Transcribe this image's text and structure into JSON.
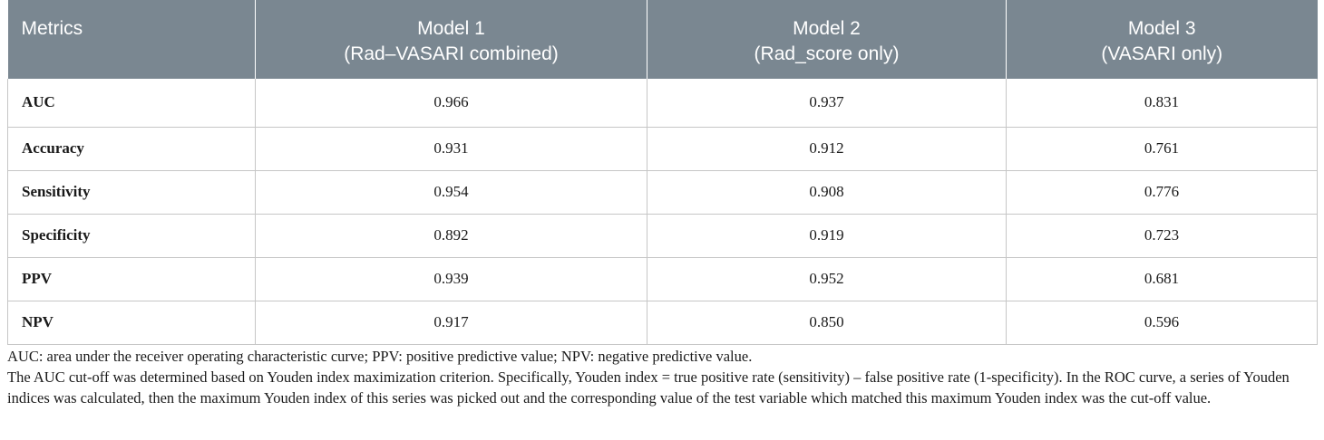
{
  "table": {
    "headers": [
      {
        "line1": "Metrics",
        "line2": ""
      },
      {
        "line1": "Model 1",
        "line2": "(Rad–VASARI combined)"
      },
      {
        "line1": "Model 2",
        "line2": "(Rad_score only)"
      },
      {
        "line1": "Model 3",
        "line2": "(VASARI only)"
      }
    ],
    "rows": [
      {
        "metric": "AUC",
        "m1": "0.966",
        "m2": "0.937",
        "m3": "0.831"
      },
      {
        "metric": "Accuracy",
        "m1": "0.931",
        "m2": "0.912",
        "m3": "0.761"
      },
      {
        "metric": "Sensitivity",
        "m1": "0.954",
        "m2": "0.908",
        "m3": "0.776"
      },
      {
        "metric": "Specificity",
        "m1": "0.892",
        "m2": "0.919",
        "m3": "0.723"
      },
      {
        "metric": "PPV",
        "m1": "0.939",
        "m2": "0.952",
        "m3": "0.681"
      },
      {
        "metric": "NPV",
        "m1": "0.917",
        "m2": "0.850",
        "m3": "0.596"
      }
    ]
  },
  "notes": {
    "abbreviations": "AUC: area under the receiver operating characteristic curve; PPV: positive predictive value; NPV: negative predictive value.",
    "cutoff": "The AUC cut-off was determined based on Youden index maximization criterion. Specifically, Youden index = true positive rate (sensitivity) – false positive rate (1-specificity). In the ROC curve, a series of Youden indices was calculated, then the maximum Youden index of this series was picked out and the corresponding value of the test variable which matched this maximum Youden index was the cut-off value."
  }
}
